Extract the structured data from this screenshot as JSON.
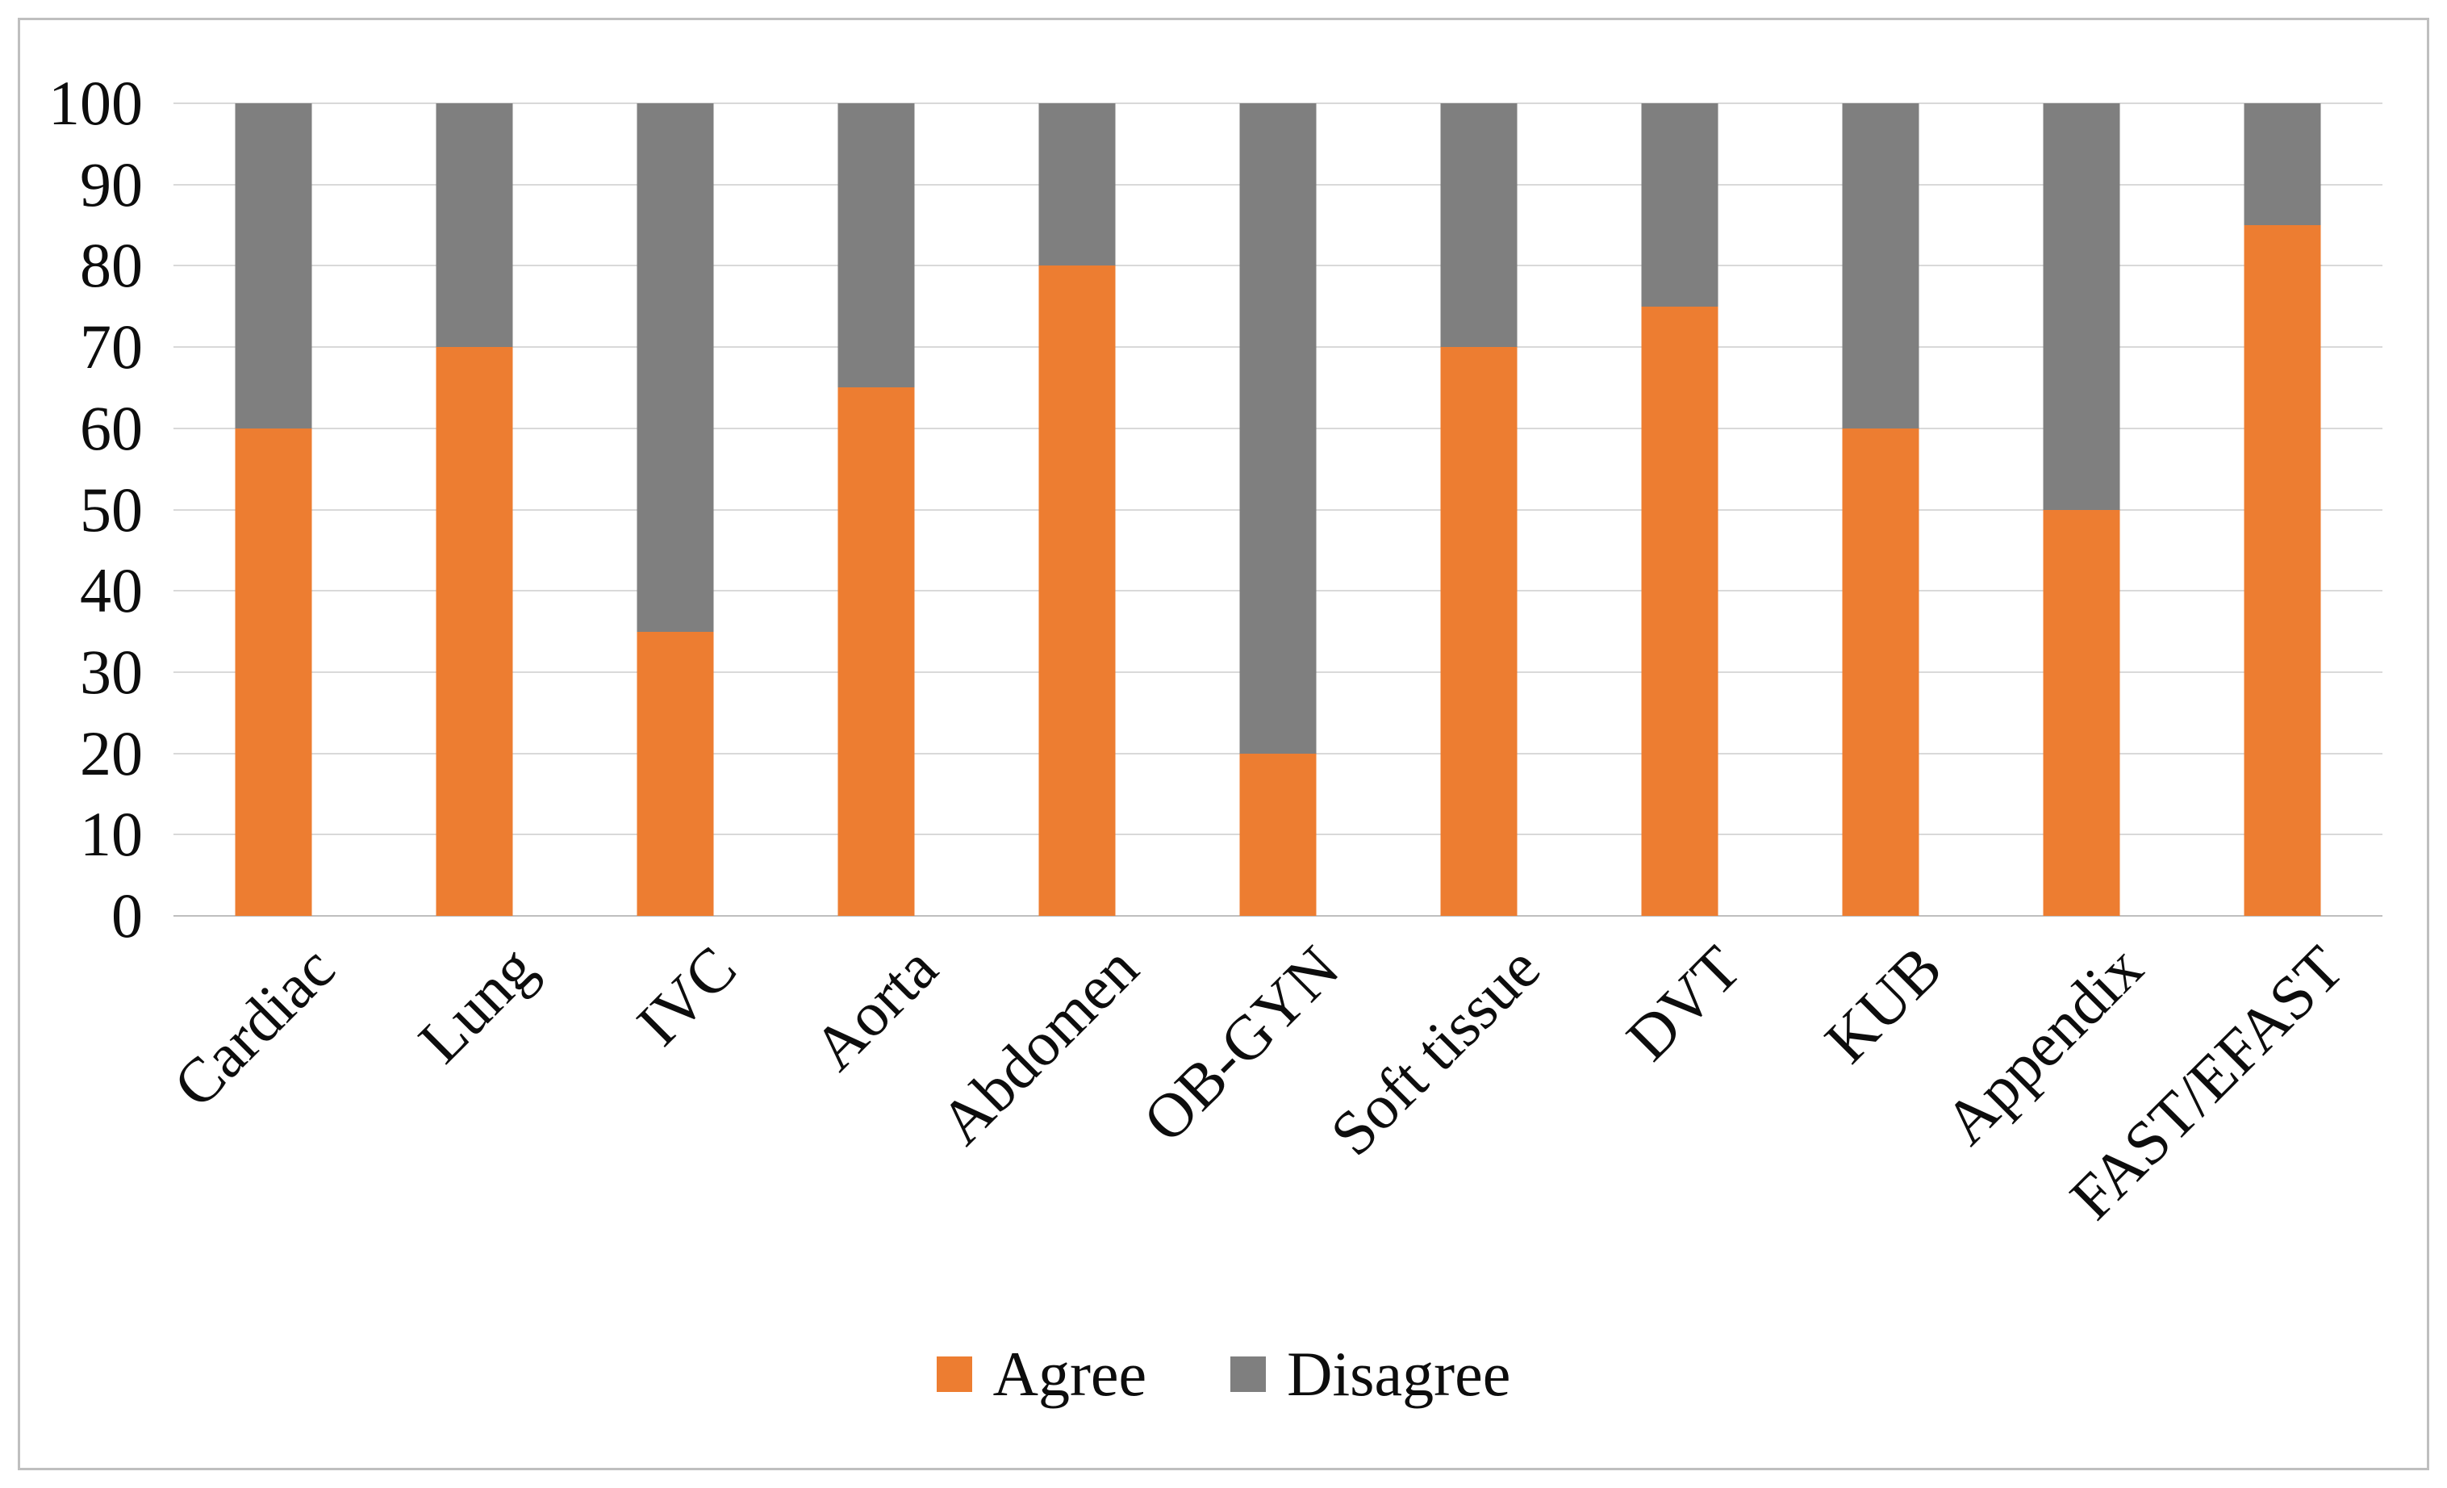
{
  "chart_data": {
    "type": "bar",
    "stacked": true,
    "title": "",
    "xlabel": "",
    "ylabel": "",
    "categories": [
      "Cardiac",
      "Lung",
      "IVC",
      "Aorta",
      "Abdomen",
      "OB-GYN",
      "Soft tissue",
      "DVT",
      "KUB",
      "Appendix",
      "FAST/EFAST"
    ],
    "series": [
      {
        "name": "Agree",
        "color": "#ED7D31",
        "values": [
          60,
          70,
          35,
          65,
          80,
          20,
          70,
          75,
          60,
          50,
          85
        ]
      },
      {
        "name": "Disagree",
        "color": "#7F7F7F",
        "values": [
          40,
          30,
          65,
          35,
          20,
          80,
          30,
          25,
          40,
          50,
          15
        ]
      }
    ],
    "ylim": [
      0,
      100
    ],
    "ytick_step": 10,
    "ytick_labels": [
      "0",
      "10",
      "20",
      "30",
      "40",
      "50",
      "60",
      "70",
      "80",
      "90",
      "100"
    ],
    "grid": true,
    "grid_color": "#d9d9d9",
    "axis_line_color": "#bfbfbf",
    "frame_border_color": "#bfbfbf",
    "background_color": "#ffffff",
    "legend_position": "bottom",
    "x_label_rotation_deg": -45
  }
}
